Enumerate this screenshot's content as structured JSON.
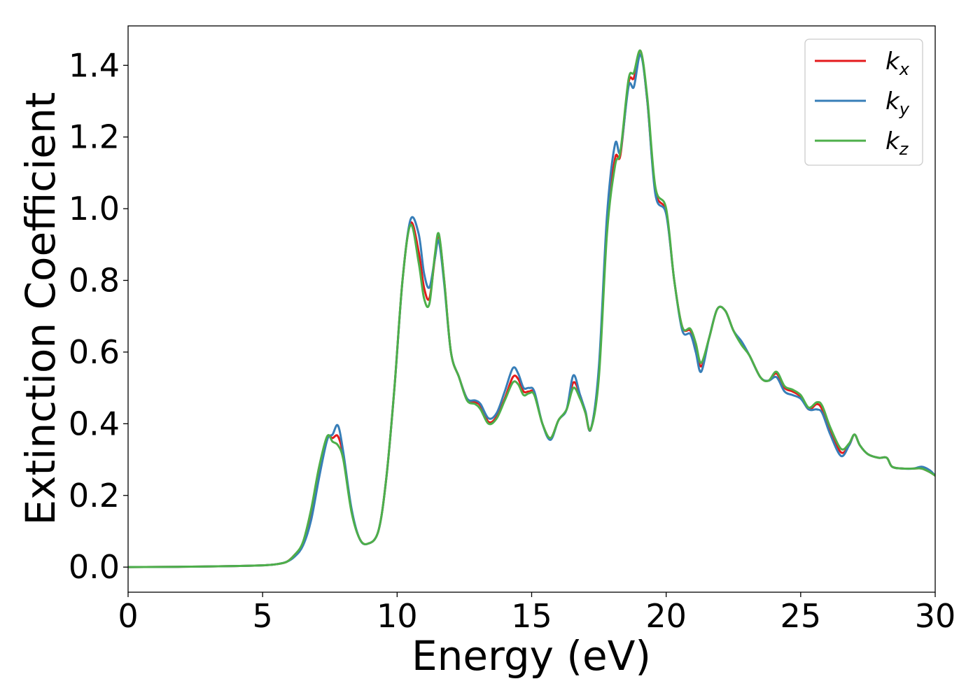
{
  "chart_data": {
    "type": "line",
    "xlabel": "Energy (eV)",
    "ylabel": "Extinction Coefficient",
    "xlim": [
      0,
      30
    ],
    "ylim": [
      -0.07,
      1.51
    ],
    "x_ticks": [
      "0",
      "5",
      "10",
      "15",
      "20",
      "25",
      "30"
    ],
    "y_ticks": [
      "0.0",
      "0.2",
      "0.4",
      "0.6",
      "0.8",
      "1.0",
      "1.2",
      "1.4"
    ],
    "grid": false,
    "legend_position": "top-right",
    "series": [
      {
        "name": "k_x",
        "label_main": "k",
        "label_sub": "x",
        "color": "#e41a1c",
        "points": [
          [
            0,
            0
          ],
          [
            2,
            0.001
          ],
          [
            4,
            0.003
          ],
          [
            5,
            0.005
          ],
          [
            5.5,
            0.008
          ],
          [
            5.9,
            0.015
          ],
          [
            6.2,
            0.035
          ],
          [
            6.5,
            0.065
          ],
          [
            6.8,
            0.15
          ],
          [
            7.1,
            0.27
          ],
          [
            7.4,
            0.36
          ],
          [
            7.6,
            0.36
          ],
          [
            7.8,
            0.365
          ],
          [
            8.0,
            0.31
          ],
          [
            8.3,
            0.16
          ],
          [
            8.6,
            0.08
          ],
          [
            8.9,
            0.065
          ],
          [
            9.3,
            0.1
          ],
          [
            9.6,
            0.25
          ],
          [
            9.9,
            0.5
          ],
          [
            10.2,
            0.8
          ],
          [
            10.5,
            0.96
          ],
          [
            10.8,
            0.88
          ],
          [
            11.0,
            0.78
          ],
          [
            11.2,
            0.75
          ],
          [
            11.4,
            0.86
          ],
          [
            11.55,
            0.925
          ],
          [
            11.75,
            0.8
          ],
          [
            12.0,
            0.6
          ],
          [
            12.3,
            0.53
          ],
          [
            12.6,
            0.47
          ],
          [
            12.9,
            0.46
          ],
          [
            13.1,
            0.45
          ],
          [
            13.4,
            0.405
          ],
          [
            13.7,
            0.42
          ],
          [
            14.0,
            0.47
          ],
          [
            14.3,
            0.53
          ],
          [
            14.5,
            0.525
          ],
          [
            14.7,
            0.49
          ],
          [
            14.9,
            0.49
          ],
          [
            15.1,
            0.485
          ],
          [
            15.4,
            0.4
          ],
          [
            15.7,
            0.36
          ],
          [
            16.0,
            0.41
          ],
          [
            16.3,
            0.44
          ],
          [
            16.55,
            0.515
          ],
          [
            16.8,
            0.48
          ],
          [
            17.0,
            0.43
          ],
          [
            17.2,
            0.385
          ],
          [
            17.5,
            0.55
          ],
          [
            17.8,
            0.95
          ],
          [
            18.1,
            1.14
          ],
          [
            18.3,
            1.15
          ],
          [
            18.6,
            1.35
          ],
          [
            18.8,
            1.365
          ],
          [
            19.05,
            1.44
          ],
          [
            19.3,
            1.3
          ],
          [
            19.6,
            1.05
          ],
          [
            20.0,
            0.99
          ],
          [
            20.3,
            0.8
          ],
          [
            20.6,
            0.67
          ],
          [
            20.9,
            0.66
          ],
          [
            21.1,
            0.62
          ],
          [
            21.3,
            0.56
          ],
          [
            21.6,
            0.64
          ],
          [
            21.9,
            0.72
          ],
          [
            22.2,
            0.715
          ],
          [
            22.5,
            0.66
          ],
          [
            22.8,
            0.625
          ],
          [
            23.1,
            0.59
          ],
          [
            23.5,
            0.53
          ],
          [
            23.8,
            0.52
          ],
          [
            24.1,
            0.54
          ],
          [
            24.4,
            0.5
          ],
          [
            24.7,
            0.49
          ],
          [
            25.0,
            0.475
          ],
          [
            25.3,
            0.44
          ],
          [
            25.6,
            0.455
          ],
          [
            25.8,
            0.44
          ],
          [
            26.1,
            0.38
          ],
          [
            26.5,
            0.32
          ],
          [
            26.8,
            0.34
          ],
          [
            27.0,
            0.37
          ],
          [
            27.2,
            0.34
          ],
          [
            27.5,
            0.315
          ],
          [
            27.9,
            0.305
          ],
          [
            28.2,
            0.305
          ],
          [
            28.4,
            0.28
          ],
          [
            28.8,
            0.275
          ],
          [
            29.2,
            0.275
          ],
          [
            29.5,
            0.275
          ],
          [
            29.8,
            0.265
          ],
          [
            30,
            0.255
          ]
        ]
      },
      {
        "name": "k_y",
        "label_main": "k",
        "label_sub": "y",
        "color": "#377eb8",
        "points": [
          [
            0,
            0
          ],
          [
            2,
            0.001
          ],
          [
            4,
            0.003
          ],
          [
            5,
            0.005
          ],
          [
            5.5,
            0.008
          ],
          [
            5.9,
            0.015
          ],
          [
            6.2,
            0.03
          ],
          [
            6.5,
            0.06
          ],
          [
            6.8,
            0.13
          ],
          [
            7.1,
            0.25
          ],
          [
            7.4,
            0.355
          ],
          [
            7.6,
            0.37
          ],
          [
            7.8,
            0.395
          ],
          [
            8.0,
            0.32
          ],
          [
            8.3,
            0.165
          ],
          [
            8.6,
            0.08
          ],
          [
            8.9,
            0.065
          ],
          [
            9.3,
            0.1
          ],
          [
            9.6,
            0.25
          ],
          [
            9.9,
            0.5
          ],
          [
            10.2,
            0.8
          ],
          [
            10.5,
            0.97
          ],
          [
            10.8,
            0.93
          ],
          [
            11.0,
            0.82
          ],
          [
            11.2,
            0.78
          ],
          [
            11.4,
            0.86
          ],
          [
            11.55,
            0.91
          ],
          [
            11.75,
            0.79
          ],
          [
            12.0,
            0.6
          ],
          [
            12.3,
            0.53
          ],
          [
            12.6,
            0.47
          ],
          [
            12.9,
            0.465
          ],
          [
            13.1,
            0.455
          ],
          [
            13.4,
            0.415
          ],
          [
            13.7,
            0.43
          ],
          [
            14.0,
            0.49
          ],
          [
            14.3,
            0.555
          ],
          [
            14.5,
            0.54
          ],
          [
            14.7,
            0.5
          ],
          [
            14.9,
            0.5
          ],
          [
            15.1,
            0.49
          ],
          [
            15.4,
            0.4
          ],
          [
            15.7,
            0.355
          ],
          [
            16.0,
            0.41
          ],
          [
            16.3,
            0.44
          ],
          [
            16.55,
            0.535
          ],
          [
            16.8,
            0.48
          ],
          [
            17.0,
            0.435
          ],
          [
            17.2,
            0.385
          ],
          [
            17.5,
            0.56
          ],
          [
            17.8,
            0.98
          ],
          [
            18.1,
            1.18
          ],
          [
            18.3,
            1.16
          ],
          [
            18.6,
            1.34
          ],
          [
            18.8,
            1.34
          ],
          [
            19.05,
            1.43
          ],
          [
            19.3,
            1.3
          ],
          [
            19.6,
            1.04
          ],
          [
            20.0,
            0.985
          ],
          [
            20.3,
            0.8
          ],
          [
            20.6,
            0.66
          ],
          [
            20.9,
            0.65
          ],
          [
            21.1,
            0.6
          ],
          [
            21.3,
            0.545
          ],
          [
            21.6,
            0.64
          ],
          [
            21.9,
            0.72
          ],
          [
            22.2,
            0.715
          ],
          [
            22.5,
            0.66
          ],
          [
            22.8,
            0.63
          ],
          [
            23.1,
            0.59
          ],
          [
            23.5,
            0.53
          ],
          [
            23.8,
            0.52
          ],
          [
            24.1,
            0.53
          ],
          [
            24.4,
            0.49
          ],
          [
            24.7,
            0.48
          ],
          [
            25.0,
            0.47
          ],
          [
            25.3,
            0.44
          ],
          [
            25.6,
            0.44
          ],
          [
            25.8,
            0.43
          ],
          [
            26.1,
            0.37
          ],
          [
            26.5,
            0.31
          ],
          [
            26.8,
            0.34
          ],
          [
            27.0,
            0.37
          ],
          [
            27.2,
            0.34
          ],
          [
            27.5,
            0.315
          ],
          [
            27.9,
            0.305
          ],
          [
            28.2,
            0.305
          ],
          [
            28.4,
            0.28
          ],
          [
            28.8,
            0.275
          ],
          [
            29.2,
            0.275
          ],
          [
            29.5,
            0.28
          ],
          [
            29.8,
            0.27
          ],
          [
            30,
            0.255
          ]
        ]
      },
      {
        "name": "k_z",
        "label_main": "k",
        "label_sub": "z",
        "color": "#4daf4a",
        "points": [
          [
            0,
            0
          ],
          [
            2,
            0.001
          ],
          [
            4,
            0.003
          ],
          [
            5,
            0.005
          ],
          [
            5.5,
            0.008
          ],
          [
            5.9,
            0.015
          ],
          [
            6.2,
            0.035
          ],
          [
            6.5,
            0.07
          ],
          [
            6.8,
            0.16
          ],
          [
            7.1,
            0.28
          ],
          [
            7.4,
            0.365
          ],
          [
            7.6,
            0.35
          ],
          [
            7.8,
            0.34
          ],
          [
            8.0,
            0.3
          ],
          [
            8.3,
            0.155
          ],
          [
            8.6,
            0.08
          ],
          [
            8.9,
            0.065
          ],
          [
            9.3,
            0.1
          ],
          [
            9.6,
            0.25
          ],
          [
            9.9,
            0.5
          ],
          [
            10.2,
            0.8
          ],
          [
            10.5,
            0.955
          ],
          [
            10.8,
            0.85
          ],
          [
            11.0,
            0.75
          ],
          [
            11.2,
            0.735
          ],
          [
            11.4,
            0.87
          ],
          [
            11.55,
            0.93
          ],
          [
            11.75,
            0.8
          ],
          [
            12.0,
            0.6
          ],
          [
            12.3,
            0.53
          ],
          [
            12.6,
            0.465
          ],
          [
            12.9,
            0.455
          ],
          [
            13.1,
            0.44
          ],
          [
            13.4,
            0.4
          ],
          [
            13.7,
            0.415
          ],
          [
            14.0,
            0.465
          ],
          [
            14.3,
            0.515
          ],
          [
            14.5,
            0.51
          ],
          [
            14.7,
            0.48
          ],
          [
            14.9,
            0.485
          ],
          [
            15.1,
            0.48
          ],
          [
            15.4,
            0.4
          ],
          [
            15.7,
            0.36
          ],
          [
            16.0,
            0.41
          ],
          [
            16.3,
            0.44
          ],
          [
            16.55,
            0.5
          ],
          [
            16.8,
            0.47
          ],
          [
            17.0,
            0.43
          ],
          [
            17.2,
            0.385
          ],
          [
            17.5,
            0.53
          ],
          [
            17.8,
            0.93
          ],
          [
            18.1,
            1.12
          ],
          [
            18.3,
            1.16
          ],
          [
            18.6,
            1.36
          ],
          [
            18.8,
            1.38
          ],
          [
            19.05,
            1.44
          ],
          [
            19.3,
            1.31
          ],
          [
            19.6,
            1.06
          ],
          [
            20.0,
            1.0
          ],
          [
            20.3,
            0.8
          ],
          [
            20.6,
            0.67
          ],
          [
            20.9,
            0.665
          ],
          [
            21.1,
            0.625
          ],
          [
            21.3,
            0.57
          ],
          [
            21.6,
            0.64
          ],
          [
            21.9,
            0.72
          ],
          [
            22.2,
            0.715
          ],
          [
            22.5,
            0.66
          ],
          [
            22.8,
            0.62
          ],
          [
            23.1,
            0.59
          ],
          [
            23.5,
            0.53
          ],
          [
            23.8,
            0.52
          ],
          [
            24.1,
            0.545
          ],
          [
            24.4,
            0.505
          ],
          [
            24.7,
            0.495
          ],
          [
            25.0,
            0.48
          ],
          [
            25.3,
            0.445
          ],
          [
            25.6,
            0.46
          ],
          [
            25.8,
            0.45
          ],
          [
            26.1,
            0.39
          ],
          [
            26.5,
            0.33
          ],
          [
            26.8,
            0.345
          ],
          [
            27.0,
            0.37
          ],
          [
            27.2,
            0.34
          ],
          [
            27.5,
            0.315
          ],
          [
            27.9,
            0.305
          ],
          [
            28.2,
            0.305
          ],
          [
            28.4,
            0.28
          ],
          [
            28.8,
            0.275
          ],
          [
            29.2,
            0.275
          ],
          [
            29.5,
            0.275
          ],
          [
            29.8,
            0.265
          ],
          [
            30,
            0.255
          ]
        ]
      }
    ]
  }
}
